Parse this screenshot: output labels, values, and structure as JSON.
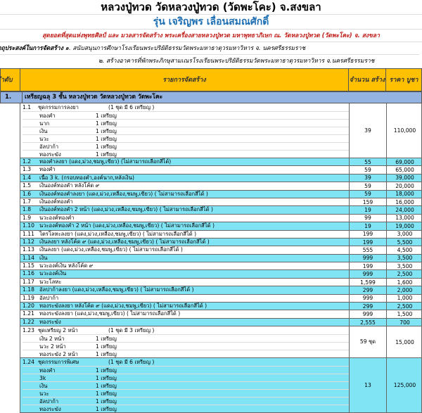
{
  "title": "หลวงปู่ทวด วัดหลวงปู่ทวด (วัดพะโคะ) จ.สงขลา",
  "subtitle": "รุ่น เจริญพร เลื่อนสมณศักดิ์",
  "tagline": "สุดยอดที่สุดแห่งพุทธศิลป์ และ มวลสารจัดสร้าง พระเครื่องสายหลวงปู่ทวด มหาพุทธาภิเษก ณ. วัดหลวงปู่ทวด (วัดพะโคะ) จ. สงขลา",
  "purpose": {
    "label": "ัตถุประสงค์ในการจัดสร้าง",
    "line1": "๑. สนับสนุนการศึกษาโรงเรียนพระปริยัติธรรมวัดพระมหาธาตุวรมหาวิหาร  จ. นครศรีธรรมราช",
    "line2": "๒. สร้างอาคารที่พักพระภิกษุสามเณรโรงเรียนพระปริยัติธรรมวัดพระมหาธาตุวรมหาวิหาร  จ.นครศรีธรรมราช"
  },
  "header": {
    "order": "ำดับ",
    "item": "รายการจัดสร้าง",
    "qty": "จำนวน สร้าง",
    "price": "ราคา บูชา"
  },
  "section": {
    "no": "1.",
    "title": "เหรียญฉลุ 3 ชั้น หลวงปู่ทวด วัดหลวงปู่ทวด วัดพะโคะ"
  },
  "colors": {
    "header": "#ffc000",
    "section": "#95b3e0",
    "cyan": "#80e4f4"
  },
  "rows": [
    {
      "no": "1.1",
      "name": "ชุดกรรมการลงยา",
      "note": "(1 ชุด มี 6 เหรียญ )",
      "sub": [
        [
          "ทองคำ",
          "1  เหรียญ"
        ],
        [
          "นาก",
          "1  เหรียญ"
        ],
        [
          "เงิน",
          "1  เหรียญ"
        ],
        [
          "นวะ",
          "1  เหรียญ"
        ],
        [
          "อัลปาก้า",
          "1  เหรียญ"
        ],
        [
          "ทองระฆัง",
          "1  เหรียญ"
        ]
      ],
      "qty": "39",
      "price": "110,000"
    },
    {
      "no": "1.2",
      "name": "ทองคำลงยา (แดง,ม่วง,ชมพู,เขียว) (ไม่สามารถเลือกสีได้)",
      "qty": "55",
      "price": "69,000"
    },
    {
      "no": "1.3",
      "name": "ทองคำ",
      "qty": "59",
      "price": "65,000"
    },
    {
      "no": "1.4",
      "name": "เนื้อ 3 k.   (กรอบทองคำ,องค์นาก,หลังเงิน)",
      "qty": "39",
      "price": "39,000"
    },
    {
      "no": "1.5",
      "name": "เงินองค์ทองคำ หลังโค้ด ๙",
      "qty": "59",
      "price": "20,000"
    },
    {
      "no": "1.6",
      "name": "เงินองค์ทองคำลงยา      (แดง,ม่วง,เหลือง,ชมพู,เขียว) ( ไม่สามารถเลือกสีได้ )",
      "qty": "59",
      "price": "18,000"
    },
    {
      "no": "1.7",
      "name": "เงินองค์ทองคำ",
      "qty": "159",
      "price": "16,000"
    },
    {
      "no": "1.8",
      "name": "เงินองค์ทองคำ 2 หน้า   (แดง,ม่วง,เหลือง,ชมพู,เขียว) ( ไม่สามารถเลือกสีได้ )",
      "qty": "19",
      "price": "24,000"
    },
    {
      "no": "1.9",
      "name": "นวะองค์ทองคำ",
      "qty": "99",
      "price": "13,000"
    },
    {
      "no": "1.10",
      "name": "นวะองค์ทองคำ 2 หน้า   (แดง,ม่วง,เหลือง,ชมพู,เขียว) ( ไม่สามารถเลือกสีได้ )",
      "qty": "19",
      "price": "19,000"
    },
    {
      "no": "1.11",
      "name": "ไตรโลหะลงยา   (แดง,ม่วง,เหลือง,ชมพู,เขียว) ( ไม่สามารถเลือกสีได้ )",
      "qty": "199",
      "price": "3,000"
    },
    {
      "no": "1.12",
      "name": "เงินลงยา หลังโค้ด ๙  (แดง,ม่วง,เหลือง,ชมพู,เขียว) ( ไม่สามารถเลือกสีได้ )",
      "qty": "199",
      "price": "5,500"
    },
    {
      "no": "1.13",
      "name": "เงินลงยา   (แดง,ม่วง,เหลือง,ชมพู,เขียว) ( ไม่สามารถเลือกสีได้ )",
      "qty": "555",
      "price": "4,500"
    },
    {
      "no": "1.14",
      "name": "เงิน",
      "qty": "999",
      "price": "3,500"
    },
    {
      "no": "1.15",
      "name": "นวะองค์เงิน หลังโค้ด ๙",
      "qty": "199",
      "price": "3,500"
    },
    {
      "no": "1.16",
      "name": "นวะองค์เงิน",
      "qty": "999",
      "price": "2,500"
    },
    {
      "no": "1.17",
      "name": "นวะโลหะ",
      "qty": "1,599",
      "price": "1,600"
    },
    {
      "no": "1.18",
      "name": "อัลปาก้าลงยา  (แดง,ม่วง,เหลือง,ชมพู,เขียว) ( ไม่สามารถเลือกสีได้ )",
      "qty": "299",
      "price": "2,000"
    },
    {
      "no": "1.19",
      "name": "อัลปาก้า",
      "qty": "999",
      "price": "1,000"
    },
    {
      "no": "1.20",
      "name": "ทองระฆังลงยา หลังโค้ด ๙ (แดง,ม่วง,ชมพู,เขียว) ( ไม่สามารถเลือกสีได้ )",
      "qty": "299",
      "price": "2,500"
    },
    {
      "no": "1.21",
      "name": "ทองระฆังลงยา (แดง,ม่วง,ชมพู,เขียว) ( ไม่สามารถเลือกสีได้ )",
      "qty": "999",
      "price": "1,500"
    },
    {
      "no": "1.22",
      "name": "ทองระฆัง",
      "qty": "2,555",
      "price": "700"
    },
    {
      "no": "1.23",
      "name": "ชุดเหรียญ 2 หน้า",
      "note": "(1 ชุด มี 3 เหรียญ )",
      "sub": [
        [
          "เงิน 2 หน้า",
          "1  เหรียญ"
        ],
        [
          "นวะ 2 หน้า",
          "1  เหรียญ"
        ],
        [
          "ทองระฆัง 2 หน้า",
          "1  เหรียญ"
        ]
      ],
      "qty": "59 ชุด",
      "price": "15,000"
    },
    {
      "no": "1.24",
      "name": "ชุดกรรมการพิเศษ",
      "note": "(1 ชุด มี 6 เหรียญ )",
      "sub": [
        [
          "ทองคำ",
          "1  เหรียญ"
        ],
        [
          "3k",
          "1  เหรียญ"
        ],
        [
          "เงิน",
          "1  เหรียญ"
        ],
        [
          "นวะ",
          "1  เหรียญ"
        ],
        [
          "อัลปาก้า",
          "1  เหรียญ"
        ],
        [
          "ทองระฆัง",
          "1  เหรียญ"
        ]
      ],
      "qty": "13",
      "price": "125,000"
    }
  ]
}
